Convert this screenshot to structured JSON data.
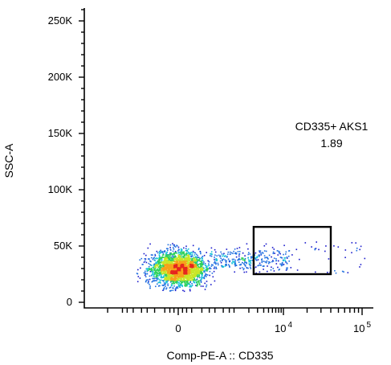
{
  "chart_data": {
    "type": "scatter",
    "subtype": "flow-cytometry-density-dot-plot",
    "title": "",
    "xlabel": "Comp-PE-A :: CD335",
    "ylabel": "SSC-A",
    "x_scale": "biexponential",
    "x_ticks": [
      {
        "label": "0",
        "value": 0
      },
      {
        "label": "10",
        "sup": "4",
        "value": 10000
      },
      {
        "label": "10",
        "sup": "5",
        "value": 100000
      }
    ],
    "y_scale": "linear",
    "ylim": [
      0,
      262144
    ],
    "y_ticks": [
      {
        "label": "0",
        "value": 0
      },
      {
        "label": "50K",
        "value": 50000
      },
      {
        "label": "100K",
        "value": 100000
      },
      {
        "label": "150K",
        "value": 150000
      },
      {
        "label": "200K",
        "value": 200000
      },
      {
        "label": "250K",
        "value": 250000
      }
    ],
    "populations": [
      {
        "name": "main cluster",
        "x_center": 0,
        "y_center": 28000,
        "color_scale": "density (blue-green-yellow-red)"
      },
      {
        "name": "CD335+ tail",
        "x_range": [
          3000,
          10000
        ],
        "y_center": 40000
      }
    ],
    "gates": [
      {
        "name": "CD335+ AKS1",
        "value": "1.89",
        "x_range": [
          2500,
          40000
        ],
        "y_range": [
          25000,
          67000
        ]
      }
    ],
    "grid": false,
    "legend": "none"
  }
}
